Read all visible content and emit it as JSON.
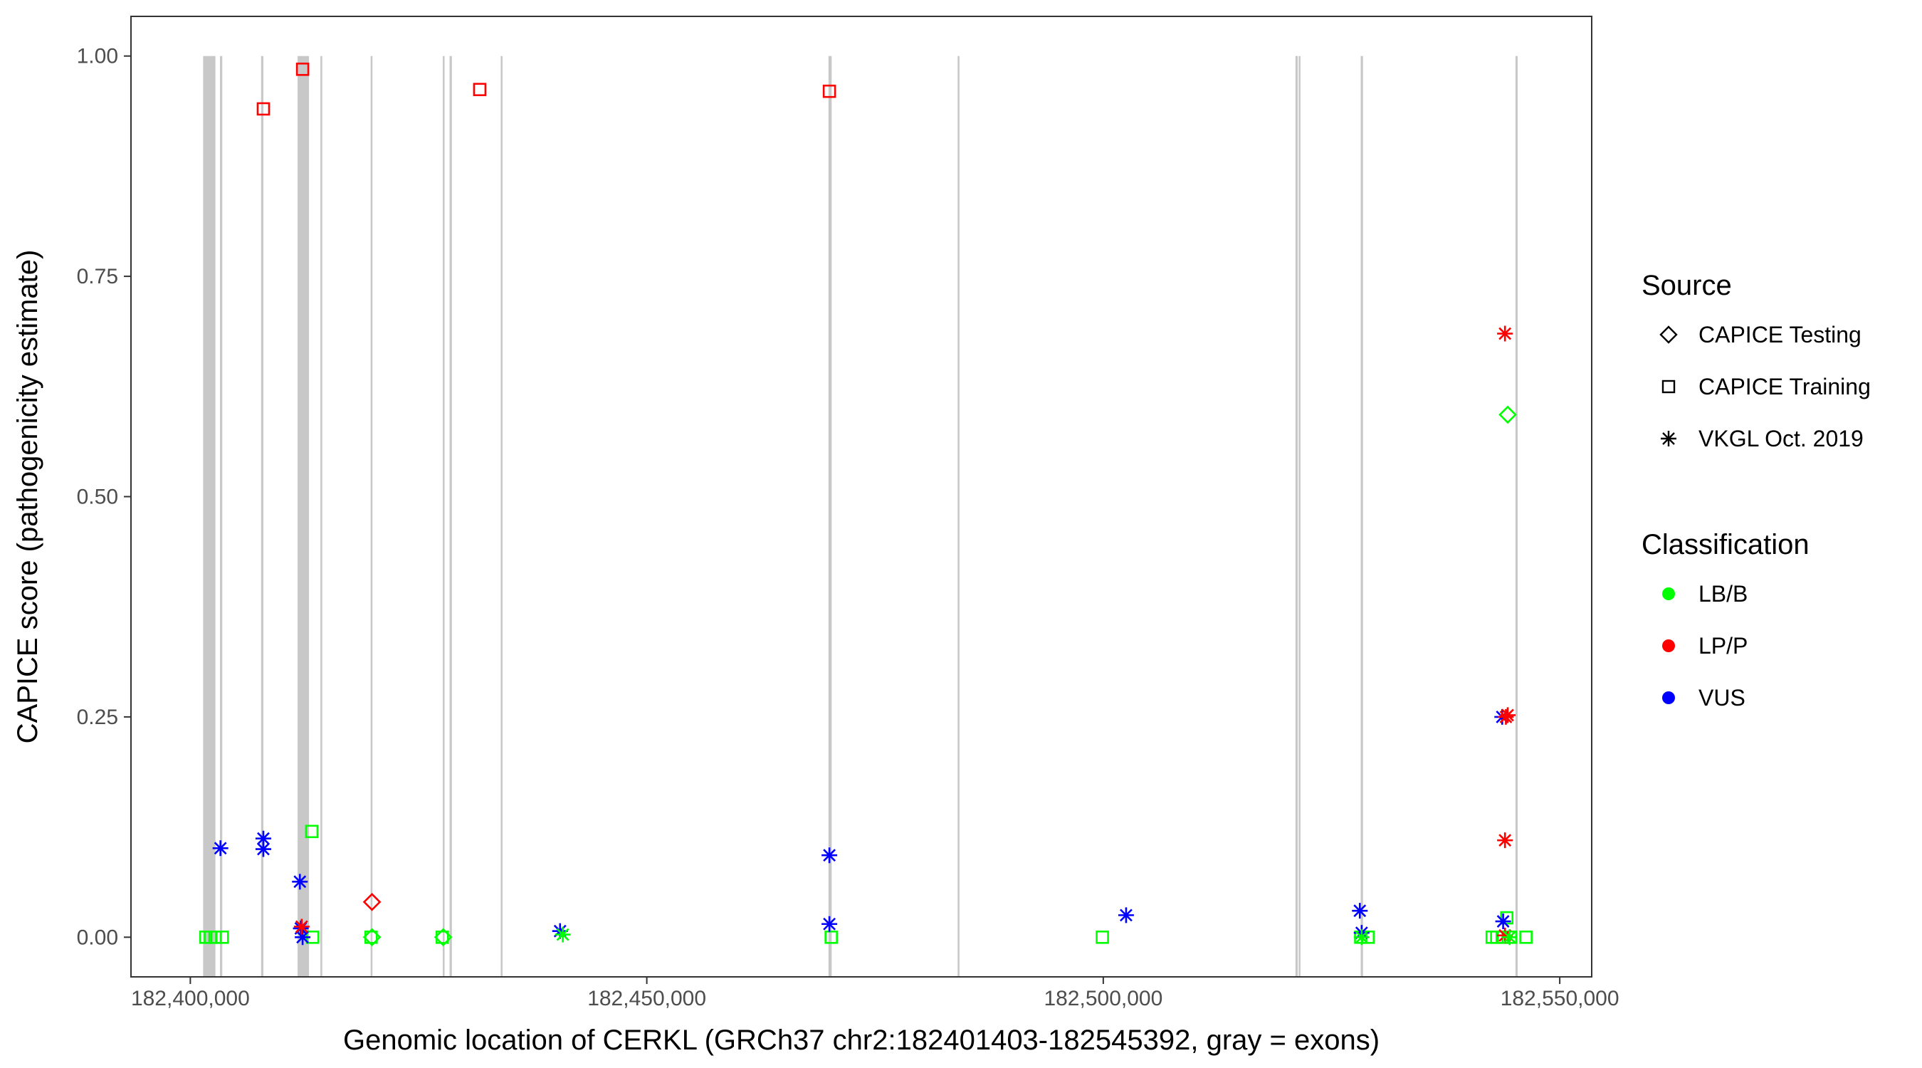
{
  "chart_data": {
    "type": "scatter",
    "xlabel": "Genomic location of CERKL (GRCh37 chr2:182401403-182545392, gray = exons)",
    "ylabel": "CAPICE score (pathogenicity estimate)",
    "xlim": [
      182393500,
      182553500
    ],
    "ylim": [
      -0.045,
      1.045
    ],
    "xticks": [
      182400000,
      182450000,
      182500000,
      182550000
    ],
    "xtick_labels": [
      "182,400,000",
      "182,450,000",
      "182,500,000",
      "182,550,000"
    ],
    "yticks": [
      0,
      0.25,
      0.5,
      0.75,
      1.0
    ],
    "ytick_labels": [
      "0.00",
      "0.25",
      "0.50",
      "0.75",
      "1.00"
    ],
    "grid": false,
    "legend_position": "right",
    "exons": [
      [
        182401403,
        182402750
      ],
      [
        182403250,
        182403500
      ],
      [
        182407750,
        182408000
      ],
      [
        182411750,
        182413000
      ],
      [
        182414250,
        182414450
      ],
      [
        182419750,
        182419950
      ],
      [
        182427650,
        182427850
      ],
      [
        182428400,
        182428650
      ],
      [
        182434000,
        182434200
      ],
      [
        182469900,
        182470250
      ],
      [
        182484050,
        182484250
      ],
      [
        182521050,
        182521300
      ],
      [
        182521400,
        182521600
      ],
      [
        182528200,
        182528450
      ],
      [
        182545150,
        182545392
      ]
    ],
    "legend": {
      "source_title": "Source",
      "sources": [
        {
          "label": "CAPICE Testing",
          "shape": "diamond"
        },
        {
          "label": "CAPICE Training",
          "shape": "square"
        },
        {
          "label": "VKGL Oct. 2019",
          "shape": "asterisk"
        }
      ],
      "classification_title": "Classification",
      "classes": [
        {
          "label": "LB/B",
          "color": "#00ff00"
        },
        {
          "label": "LP/P",
          "color": "#ff0000"
        },
        {
          "label": "VUS",
          "color": "#0000ff"
        }
      ]
    },
    "series": [
      {
        "source": "CAPICE Training",
        "classification": "LP/P",
        "shape": "square",
        "color": "#ff0000",
        "points": [
          [
            182408000,
            0.94
          ],
          [
            182412300,
            0.985
          ],
          [
            182431700,
            0.962
          ],
          [
            182470000,
            0.96
          ]
        ]
      },
      {
        "source": "CAPICE Training",
        "classification": "LB/B",
        "shape": "square",
        "color": "#00ff00",
        "points": [
          [
            182401700,
            0.0
          ],
          [
            182402200,
            0.0
          ],
          [
            182402700,
            0.0
          ],
          [
            182403500,
            0.0
          ],
          [
            182413300,
            0.12
          ],
          [
            182413400,
            0.0
          ],
          [
            182419800,
            0.0
          ],
          [
            182427600,
            0.0
          ],
          [
            182470200,
            0.0
          ],
          [
            182499900,
            0.0
          ],
          [
            182528200,
            0.0
          ],
          [
            182529000,
            0.0
          ],
          [
            182542600,
            0.0
          ],
          [
            182543100,
            0.0
          ],
          [
            182543700,
            0.0
          ],
          [
            182544200,
            0.022
          ],
          [
            182544600,
            0.0
          ],
          [
            182546300,
            0.0
          ]
        ]
      },
      {
        "source": "CAPICE Testing",
        "classification": "LP/P",
        "shape": "diamond",
        "color": "#ff0000",
        "points": [
          [
            182419900,
            0.04
          ]
        ]
      },
      {
        "source": "CAPICE Testing",
        "classification": "LB/B",
        "shape": "diamond",
        "color": "#00ff00",
        "points": [
          [
            182419900,
            0.0
          ],
          [
            182427700,
            0.0
          ],
          [
            182544300,
            0.593
          ]
        ]
      },
      {
        "source": "VKGL Oct. 2019",
        "classification": "VUS",
        "shape": "asterisk",
        "color": "#0000ff",
        "points": [
          [
            182403300,
            0.101
          ],
          [
            182408000,
            0.112
          ],
          [
            182408000,
            0.1
          ],
          [
            182412000,
            0.063
          ],
          [
            182412100,
            0.01
          ],
          [
            182412300,
            0.0
          ],
          [
            182440500,
            0.007
          ],
          [
            182470000,
            0.093
          ],
          [
            182470000,
            0.015
          ],
          [
            182502500,
            0.025
          ],
          [
            182528100,
            0.03
          ],
          [
            182528300,
            0.005
          ],
          [
            182543700,
            0.25
          ],
          [
            182543800,
            0.018
          ]
        ]
      },
      {
        "source": "VKGL Oct. 2019",
        "classification": "LP/P",
        "shape": "asterisk",
        "color": "#ff0000",
        "points": [
          [
            182412200,
            0.012
          ],
          [
            182544000,
            0.685
          ],
          [
            182544000,
            0.11
          ],
          [
            182544100,
            0.25
          ],
          [
            182544300,
            0.252
          ],
          [
            182544000,
            0.002
          ]
        ]
      },
      {
        "source": "VKGL Oct. 2019",
        "classification": "LB/B",
        "shape": "asterisk",
        "color": "#00ff00",
        "points": [
          [
            182440800,
            0.003
          ],
          [
            182528300,
            0.0
          ],
          [
            182544500,
            0.0
          ]
        ]
      }
    ]
  }
}
